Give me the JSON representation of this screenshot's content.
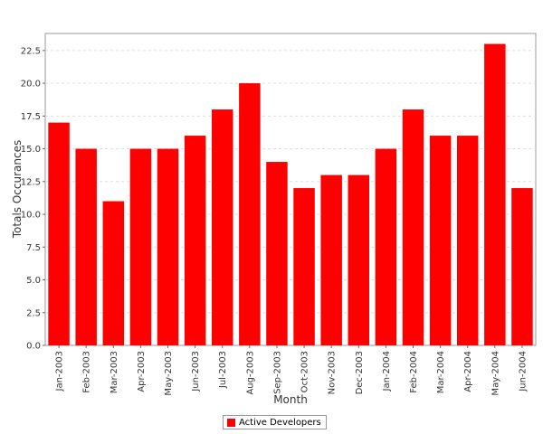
{
  "chart_data": {
    "type": "bar",
    "title": "",
    "xlabel": "Month",
    "ylabel": "Totals Occurances",
    "categories": [
      "Jan-2003",
      "Feb-2003",
      "Mar-2003",
      "Apr-2003",
      "May-2003",
      "Jun-2003",
      "Jul-2003",
      "Aug-2003",
      "Sep-2003",
      "Oct-2003",
      "Nov-2003",
      "Dec-2003",
      "Jan-2004",
      "Feb-2004",
      "Mar-2004",
      "Apr-2004",
      "May-2004",
      "Jun-2004"
    ],
    "series": [
      {
        "name": "Active Developers",
        "color": "#ff0000",
        "values": [
          17,
          15,
          11,
          15,
          15,
          16,
          18,
          20,
          14,
          12,
          13,
          13,
          15,
          18,
          16,
          16,
          23,
          12
        ]
      }
    ],
    "ylim": [
      0,
      23.8
    ],
    "yticks": [
      0.0,
      2.5,
      5.0,
      7.5,
      10.0,
      12.5,
      15.0,
      17.5,
      20.0,
      22.5
    ],
    "ytick_labels": [
      "0.0",
      "2.5",
      "5.0",
      "7.5",
      "10.0",
      "12.5",
      "15.0",
      "17.5",
      "20.0",
      "22.5"
    ],
    "grid": true,
    "legend": "bottom-center"
  }
}
